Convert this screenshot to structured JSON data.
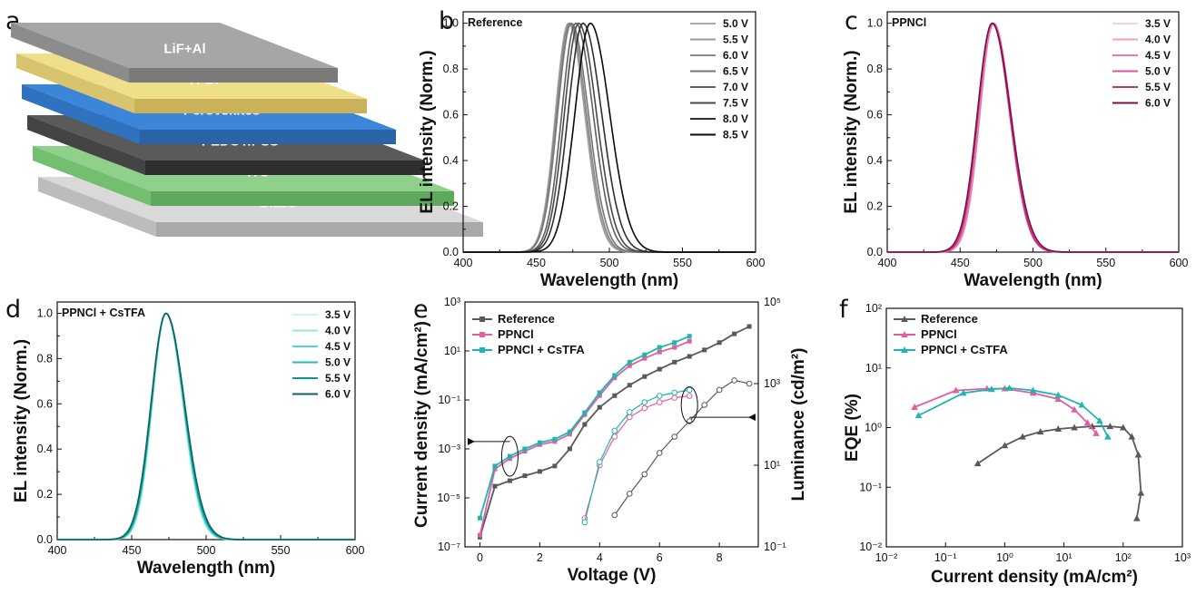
{
  "panel_letters": {
    "a": "a",
    "b": "b",
    "c": "c",
    "d": "d",
    "e": "e",
    "f": "f"
  },
  "device": {
    "layers": [
      {
        "label": "LiF+Al",
        "top": "#a6a6a6",
        "front": "#7a7a7a",
        "side": "#8c8c8c"
      },
      {
        "label": "TPBi",
        "top": "#f0df8a",
        "front": "#c9b25a",
        "side": "#d8c46e"
      },
      {
        "label": "Perovskites",
        "top": "#3b86d9",
        "front": "#2a63a8",
        "side": "#2f73c0"
      },
      {
        "label": "PEDOT:PSS",
        "top": "#5a5a5a",
        "front": "#2f2f2f",
        "side": "#444444"
      },
      {
        "label": "ITO",
        "top": "#8fd08a",
        "front": "#5da85a",
        "side": "#74be70"
      },
      {
        "label": "Glass",
        "top": "#d9d9d9",
        "front": "#a9a9a9",
        "side": "#bcbcbc"
      }
    ]
  },
  "chart_data": [
    {
      "panel": "b",
      "type": "line",
      "title": "Reference",
      "xlabel": "Wavelength (nm)",
      "ylabel": "EL intensity (Norm.)",
      "xlim": [
        400,
        600
      ],
      "ylim": [
        0,
        1.05
      ],
      "xticks": [
        "400",
        "450",
        "500",
        "550",
        "600"
      ],
      "yticks": [
        "0.0",
        "0.2",
        "0.4",
        "0.6",
        "0.8",
        "1.0"
      ],
      "series": [
        {
          "name": "5.0 V",
          "color": "#a9a9a9",
          "peak": 472,
          "fwhm": 21
        },
        {
          "name": "5.5 V",
          "color": "#9a9a9a",
          "peak": 472.5,
          "fwhm": 21
        },
        {
          "name": "6.0 V",
          "color": "#8a8a8a",
          "peak": 473,
          "fwhm": 21.5
        },
        {
          "name": "6.5 V",
          "color": "#777777",
          "peak": 474,
          "fwhm": 22
        },
        {
          "name": "7.0 V",
          "color": "#606060",
          "peak": 477,
          "fwhm": 22.5
        },
        {
          "name": "7.5 V",
          "color": "#494949",
          "peak": 479,
          "fwhm": 23
        },
        {
          "name": "8.0 V",
          "color": "#2f2f2f",
          "peak": 482,
          "fwhm": 24
        },
        {
          "name": "8.5 V",
          "color": "#0a0a0a",
          "peak": 487,
          "fwhm": 25
        }
      ]
    },
    {
      "panel": "c",
      "type": "line",
      "title": "PPNCl",
      "xlabel": "Wavelength (nm)",
      "ylabel": "EL intensity (Norm.)",
      "xlim": [
        400,
        600
      ],
      "ylim": [
        0,
        1.05
      ],
      "xticks": [
        "400",
        "450",
        "500",
        "550",
        "600"
      ],
      "yticks": [
        "0.0",
        "0.2",
        "0.4",
        "0.6",
        "0.8",
        "1.0"
      ],
      "series": [
        {
          "name": "3.5 V",
          "color": "#f6cfe2",
          "peak": 473,
          "fwhm": 22
        },
        {
          "name": "4.0 V",
          "color": "#ee9fc4",
          "peak": 473,
          "fwhm": 22
        },
        {
          "name": "4.5 V",
          "color": "#e27aae",
          "peak": 473,
          "fwhm": 22.5
        },
        {
          "name": "5.0 V",
          "color": "#d5569a",
          "peak": 472,
          "fwhm": 22.5
        },
        {
          "name": "5.5 V",
          "color": "#c4307e",
          "peak": 472,
          "fwhm": 23
        },
        {
          "name": "6.0 V",
          "color": "#7a1048",
          "peak": 472,
          "fwhm": 24
        }
      ]
    },
    {
      "panel": "d",
      "type": "line",
      "title": "PPNCl + CsTFA",
      "xlabel": "Wavelength (nm)",
      "ylabel": "EL intensity (Norm.)",
      "xlim": [
        400,
        600
      ],
      "ylim": [
        0,
        1.05
      ],
      "xticks": [
        "400",
        "450",
        "500",
        "550",
        "600"
      ],
      "yticks": [
        "0.0",
        "0.2",
        "0.4",
        "0.6",
        "0.8",
        "1.0"
      ],
      "series": [
        {
          "name": "3.5 V",
          "color": "#cdf2f0",
          "peak": 473,
          "fwhm": 21.5
        },
        {
          "name": "4.0 V",
          "color": "#96e6e2",
          "peak": 473,
          "fwhm": 21.5
        },
        {
          "name": "4.5 V",
          "color": "#4fd6d0",
          "peak": 473,
          "fwhm": 22
        },
        {
          "name": "5.0 V",
          "color": "#22bdb6",
          "peak": 473,
          "fwhm": 22.5
        },
        {
          "name": "5.5 V",
          "color": "#14978f",
          "peak": 473,
          "fwhm": 23
        },
        {
          "name": "6.0 V",
          "color": "#0b6460",
          "peak": 473,
          "fwhm": 23.5
        }
      ]
    },
    {
      "panel": "e",
      "type": "line",
      "xlabel": "Voltage (V)",
      "ylabel": "Current density (mA/cm²)",
      "y2label": "Luminance (cd/m²)",
      "xlim": [
        -0.5,
        9.3
      ],
      "ylim_log": [
        -7,
        3
      ],
      "y2lim_log": [
        -1,
        5
      ],
      "xticks": [
        "0",
        "2",
        "4",
        "6",
        "8"
      ],
      "yticks": [
        "10⁻⁷",
        "10⁻⁵",
        "10⁻³",
        "10⁻¹",
        "10¹",
        "10³"
      ],
      "y2ticks": [
        "10⁻¹",
        "10¹",
        "10³",
        "10⁵"
      ],
      "series": [
        {
          "name": "Reference",
          "color": "#595959",
          "marker": "square",
          "x": [
            0,
            0.5,
            1,
            1.5,
            2,
            2.5,
            3,
            3.5,
            4,
            4.5,
            5,
            5.5,
            6,
            6.5,
            7,
            7.5,
            8,
            8.5,
            9
          ],
          "y": [
            2.5e-07,
            3e-05,
            5e-05,
            8e-05,
            0.00012,
            0.0002,
            0.001,
            0.01,
            0.05,
            0.15,
            0.4,
            0.9,
            1.8,
            3.5,
            6,
            11,
            22,
            50,
            100
          ]
        },
        {
          "name": "PPNCl",
          "color": "#e0609f",
          "marker": "square",
          "x": [
            0,
            0.5,
            1,
            1.5,
            2,
            2.5,
            3,
            3.5,
            4,
            4.5,
            5,
            5.5,
            6,
            6.5,
            7
          ],
          "y": [
            3e-07,
            0.00015,
            0.0004,
            0.0008,
            0.0015,
            0.002,
            0.004,
            0.025,
            0.15,
            0.8,
            2.5,
            5,
            9,
            14,
            25
          ]
        },
        {
          "name": "PPNCl + CsTFA",
          "color": "#1fb5b0",
          "marker": "square",
          "x": [
            0,
            0.5,
            1,
            1.5,
            2,
            2.5,
            3,
            3.5,
            4,
            4.5,
            5,
            5.5,
            6,
            6.5,
            7
          ],
          "y": [
            1.5e-06,
            0.0002,
            0.0005,
            0.001,
            0.0018,
            0.0025,
            0.005,
            0.03,
            0.2,
            1,
            3.5,
            7,
            14,
            22,
            40
          ]
        }
      ],
      "luminance": [
        {
          "name": "Reference",
          "color": "#595959",
          "x": [
            4.5,
            5,
            5.5,
            6,
            6.5,
            7,
            7.5,
            8,
            8.5,
            9
          ],
          "y": [
            0.6,
            2,
            6,
            20,
            50,
            120,
            300,
            700,
            1200,
            1000
          ]
        },
        {
          "name": "PPNCl",
          "color": "#e0609f",
          "x": [
            3.5,
            4,
            4.5,
            5,
            5.5,
            6,
            6.5,
            7
          ],
          "y": [
            0.5,
            10,
            50,
            150,
            250,
            350,
            450,
            500
          ]
        },
        {
          "name": "PPNCl + CsTFA",
          "color": "#1fb5b0",
          "x": [
            3.5,
            4,
            4.5,
            5,
            5.5,
            6,
            6.5,
            7
          ],
          "y": [
            0.4,
            12,
            70,
            200,
            350,
            500,
            600,
            700
          ]
        }
      ]
    },
    {
      "panel": "f",
      "type": "line",
      "xlabel": "Current density (mA/cm²)",
      "ylabel": "EQE (%)",
      "xlim_log": [
        -2,
        3
      ],
      "ylim_log": [
        -2,
        2
      ],
      "xticks": [
        "10⁻²",
        "10⁻¹",
        "10⁰",
        "10¹",
        "10²",
        "10³"
      ],
      "yticks": [
        "10⁻²",
        "10⁻¹",
        "10⁰",
        "10¹",
        "10²"
      ],
      "series": [
        {
          "name": "Reference",
          "color": "#595959",
          "marker": "triangle",
          "x": [
            0.35,
            1,
            2,
            4,
            8,
            15,
            30,
            60,
            100,
            140,
            180,
            200,
            170
          ],
          "y": [
            0.25,
            0.5,
            0.7,
            0.85,
            0.95,
            1.0,
            1.05,
            1.05,
            1.0,
            0.7,
            0.35,
            0.08,
            0.03
          ]
        },
        {
          "name": "PPNCl",
          "color": "#e0609f",
          "marker": "triangle",
          "x": [
            0.03,
            0.15,
            0.5,
            1,
            3,
            8,
            15,
            25,
            35
          ],
          "y": [
            2.2,
            4.2,
            4.5,
            4.5,
            3.8,
            3,
            2,
            1.2,
            0.8
          ]
        },
        {
          "name": "PPNCl + CsTFA",
          "color": "#1fb5b0",
          "marker": "triangle",
          "x": [
            0.035,
            0.2,
            0.6,
            1.2,
            3,
            8,
            20,
            40,
            55
          ],
          "y": [
            1.6,
            3.8,
            4.4,
            4.6,
            4.2,
            3.5,
            2.4,
            1.3,
            0.7
          ]
        }
      ]
    }
  ]
}
